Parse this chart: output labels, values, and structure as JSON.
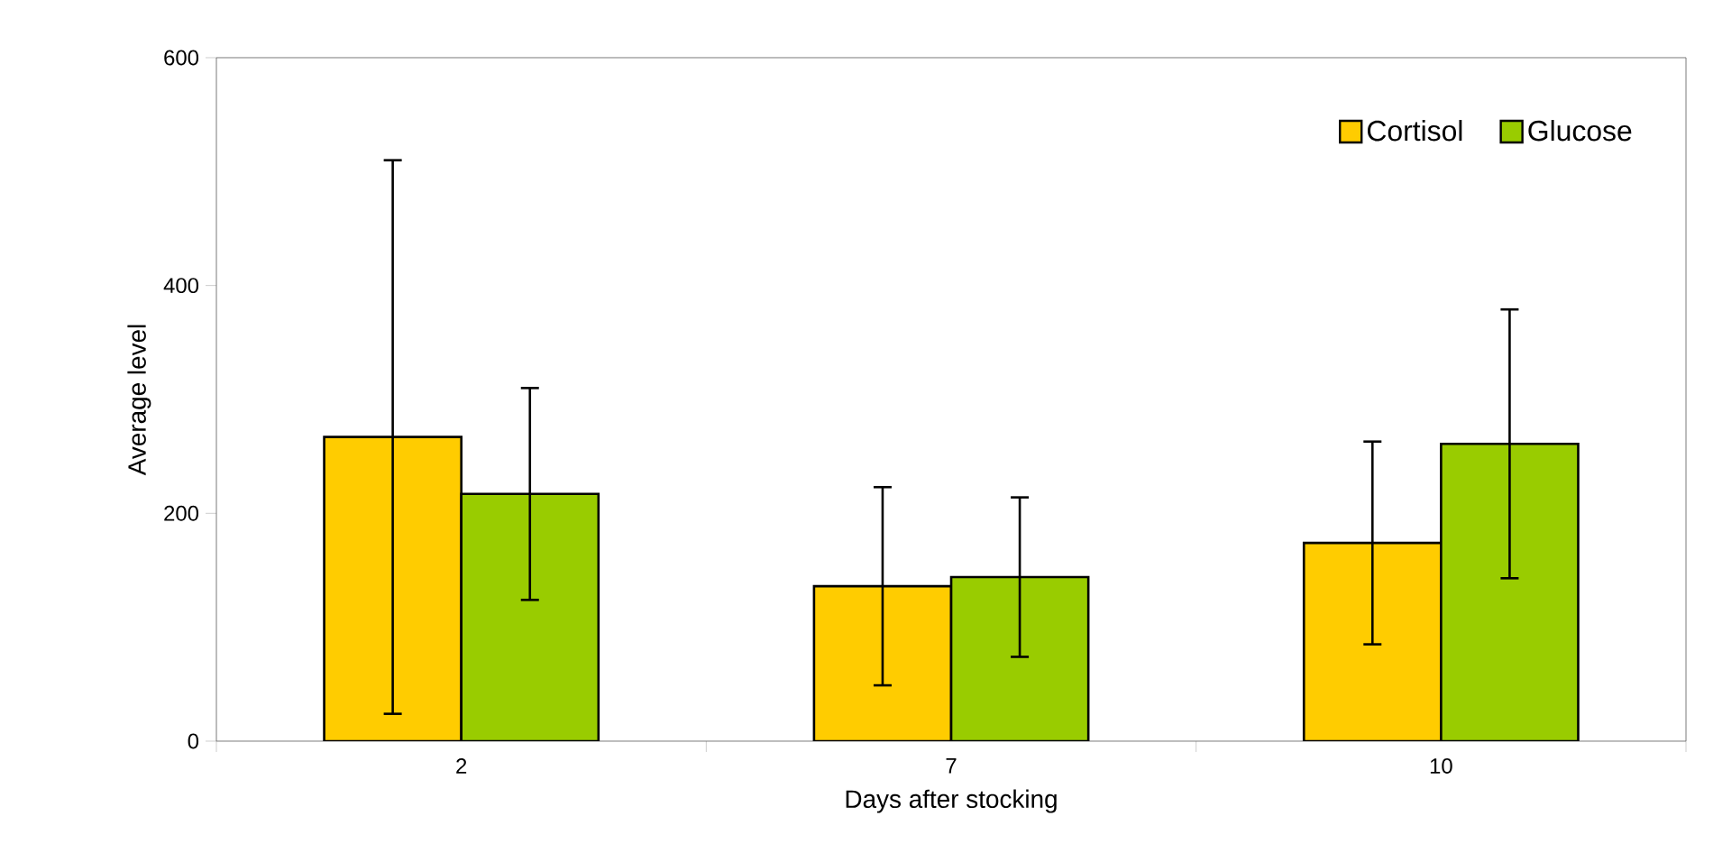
{
  "chart_data": {
    "type": "bar",
    "xlabel": "Days after stocking",
    "ylabel": "Average level",
    "categories": [
      "2",
      "7",
      "10"
    ],
    "series": [
      {
        "name": "Cortisol",
        "color": "#ffcc00",
        "values": [
          267,
          136,
          174
        ],
        "errors": [
          243,
          87,
          89
        ]
      },
      {
        "name": "Glucose",
        "color": "#99cc00",
        "values": [
          217,
          144,
          261
        ],
        "errors": [
          93,
          70,
          118
        ]
      }
    ],
    "ylim": [
      0,
      600
    ],
    "yticks": [
      0,
      200,
      400,
      600
    ],
    "grid": false,
    "legend": "top right"
  }
}
